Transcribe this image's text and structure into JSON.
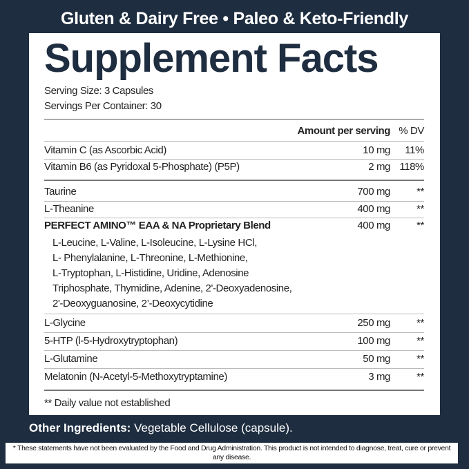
{
  "tagline": "Gluten & Dairy Free • Paleo & Keto-Friendly",
  "title": "Supplement Facts",
  "serving_size": "Serving Size: 3 Capsules",
  "servings_per_container": "Servings Per Container: 30",
  "header": {
    "amount": "Amount per serving",
    "dv": "% DV"
  },
  "vitamins": [
    {
      "name": "Vitamin C (as Ascorbic Acid)",
      "amount": "10 mg",
      "dv": "11%"
    },
    {
      "name": "Vitamin B6 (as Pyridoxal 5-Phosphate) (P5P)",
      "amount": "2 mg",
      "dv": "118%"
    }
  ],
  "others_top": [
    {
      "name": "Taurine",
      "amount": "700 mg",
      "dv": "**"
    },
    {
      "name": "L-Theanine",
      "amount": "400 mg",
      "dv": "**"
    }
  ],
  "blend": {
    "name": "PERFECT AMINO™  EAA & NA Proprietary Blend",
    "amount": "400 mg",
    "dv": "**",
    "lines": [
      "L-Leucine, L-Valine, L-Isoleucine, L-Lysine HCl,",
      "L- Phenylalanine, L-Threonine, L-Methionine,",
      "L-Tryptophan, L-Histidine, Uridine, Adenosine",
      "Triphosphate, Thymidine, Adenine, 2'-Deoxyadenosine,",
      "2'-Deoxyguanosine, 2’-Deoxycytidine"
    ]
  },
  "others_bottom": [
    {
      "name": "L-Glycine",
      "amount": "250 mg",
      "dv": "**"
    },
    {
      "name": "5-HTP (l-5-Hydroxytryptophan)",
      "amount": "100 mg",
      "dv": "**"
    },
    {
      "name": "L-Glutamine",
      "amount": "50 mg",
      "dv": "**"
    },
    {
      "name": "Melatonin (N-Acetyl-5-Methoxytryptamine)",
      "amount": "3 mg",
      "dv": "**"
    }
  ],
  "footnote": "** Daily value not established",
  "other_ingredients": {
    "label": "Other Ingredients:",
    "value": "Vegetable Cellulose (capsule)."
  },
  "disclaimer": "* These statements have not been evaluated by the Food and Drug Administration. This product is not intended to diagnose, treat, cure or prevent any disease.",
  "colors": {
    "background": "#1e2d40",
    "panel": "#ffffff"
  }
}
